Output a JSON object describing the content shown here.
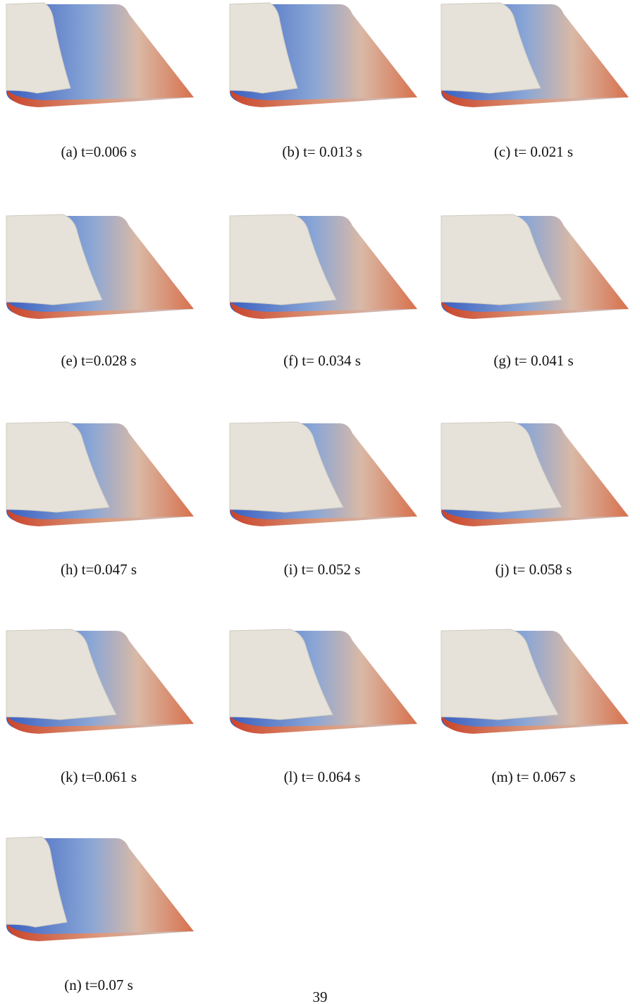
{
  "figure": {
    "panels": [
      {
        "caption": "(a) t=0.006 s"
      },
      {
        "caption": "(b) t= 0.013 s"
      },
      {
        "caption": "(c) t= 0.021 s"
      },
      {
        "caption": "(e) t=0.028 s"
      },
      {
        "caption": "(f) t= 0.034 s"
      },
      {
        "caption": "(g) t= 0.041 s"
      },
      {
        "caption": "(h) t=0.047 s"
      },
      {
        "caption": "(i) t= 0.052 s"
      },
      {
        "caption": "(j) t= 0.058 s"
      },
      {
        "caption": "(k) t=0.061 s"
      },
      {
        "caption": "(l) t= 0.064 s"
      },
      {
        "caption": "(m) t= 0.067 s"
      },
      {
        "caption": "(n) t=0.07 s"
      }
    ]
  },
  "page_number": "39"
}
